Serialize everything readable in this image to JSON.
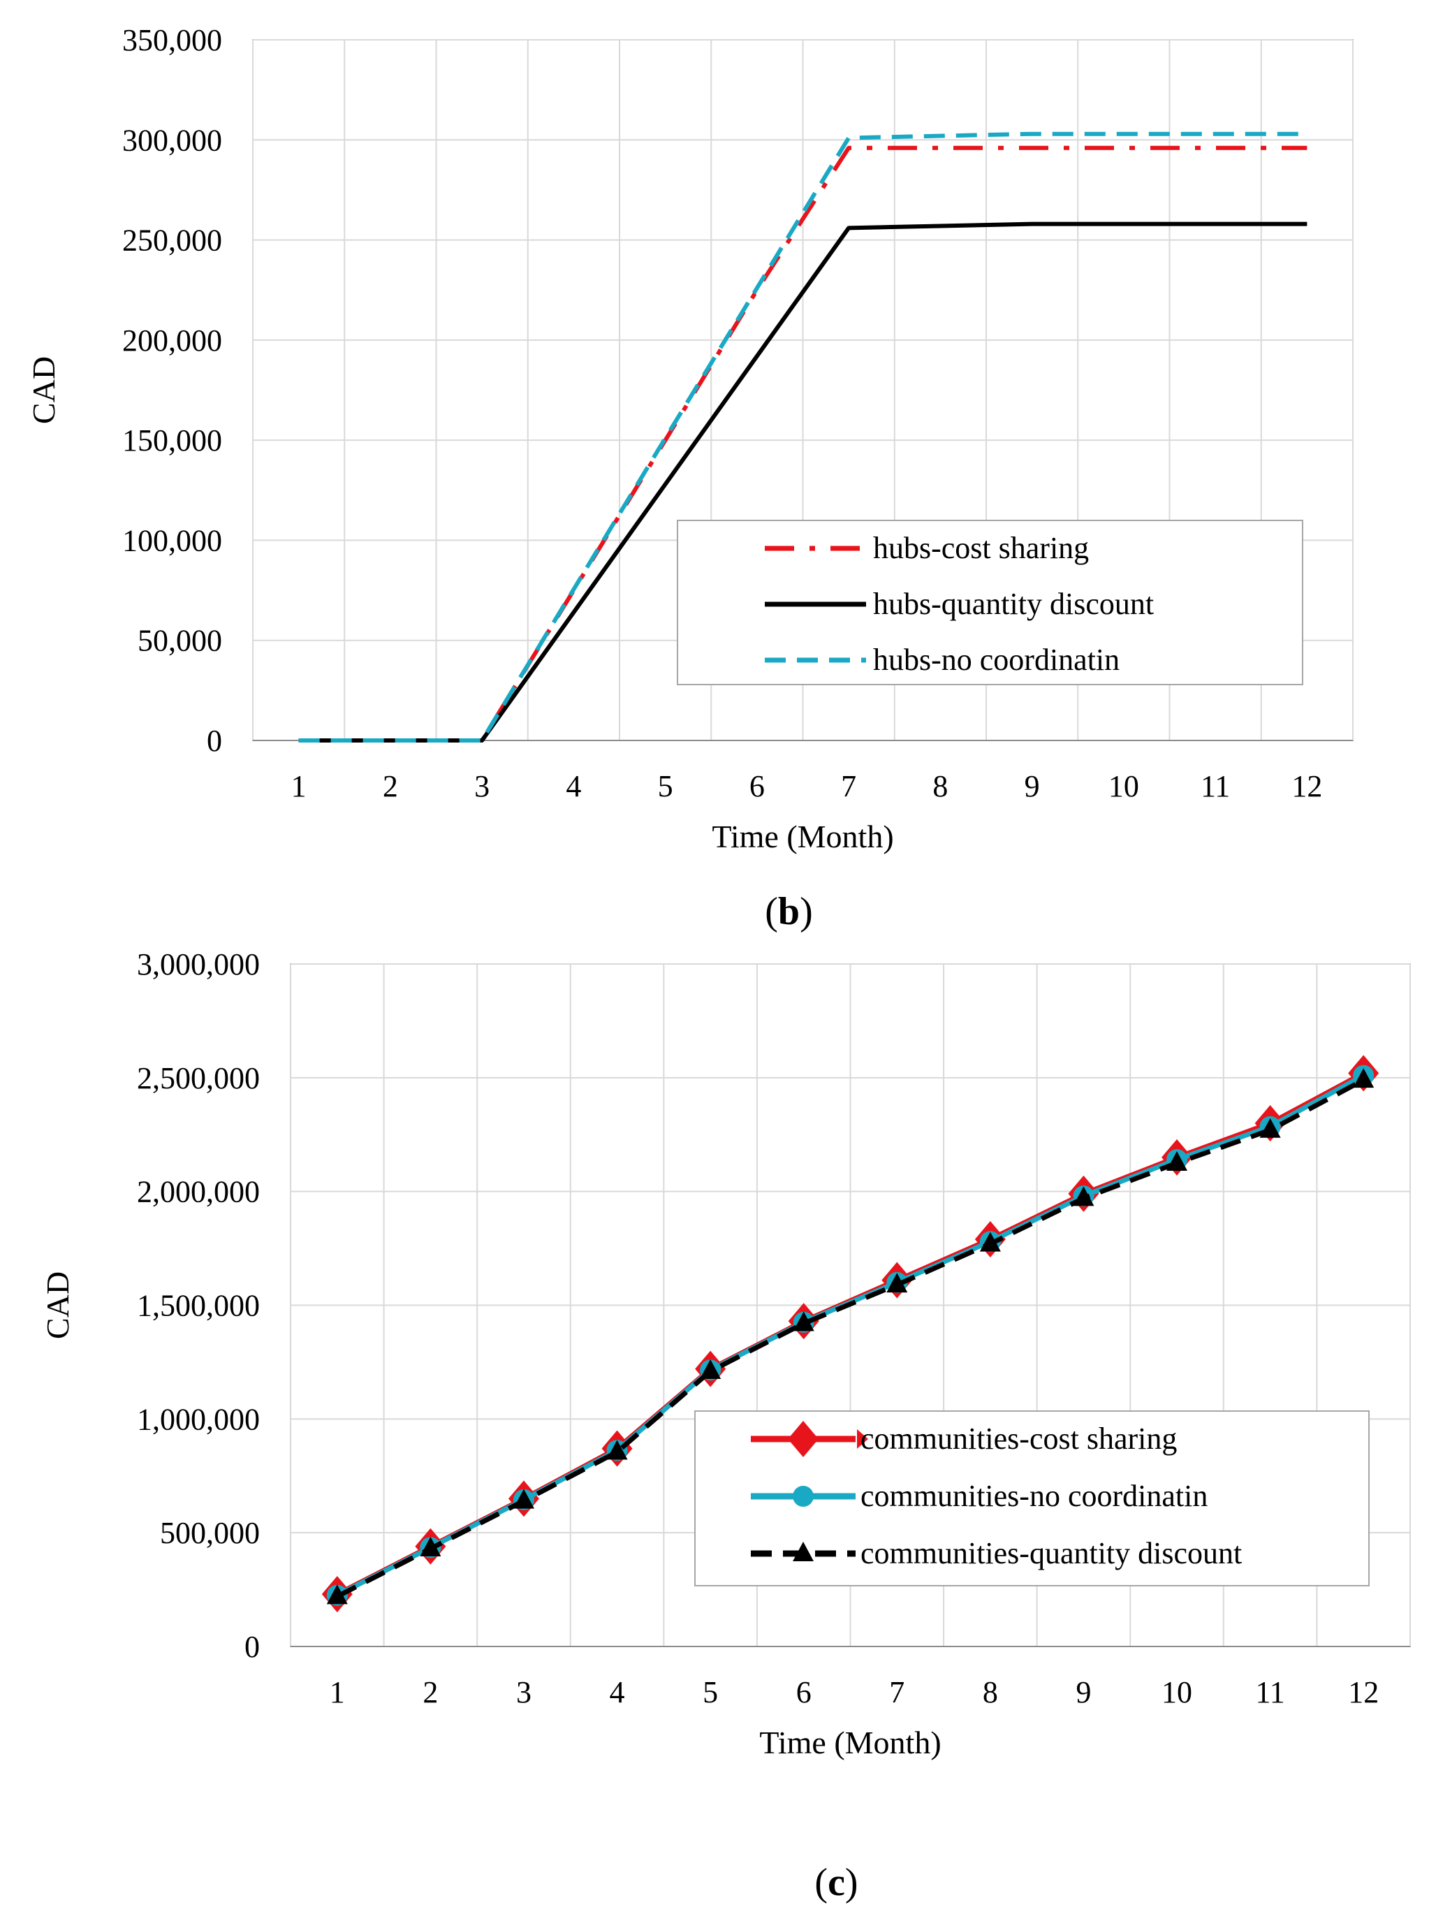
{
  "chart_data": [
    {
      "type": "line",
      "panel": "b",
      "caption_letter": "b",
      "xlabel": "Time (Month)",
      "ylabel": "CAD",
      "x": [
        1,
        2,
        3,
        4,
        5,
        6,
        7,
        8,
        9,
        10,
        11,
        12
      ],
      "ylim": [
        0,
        350000
      ],
      "yticks": [
        0,
        50000,
        100000,
        150000,
        200000,
        250000,
        300000,
        350000
      ],
      "ytick_labels": [
        "0",
        "50,000",
        "100,000",
        "150,000",
        "200,000",
        "250,000",
        "300,000",
        "350,000"
      ],
      "grid": true,
      "legend_position": "bottom-right",
      "series": [
        {
          "name": "hubs-cost sharing",
          "color": "#e8141b",
          "style": "dash-dot",
          "values": [
            0,
            0,
            0,
            75000,
            150000,
            225000,
            296000,
            296000,
            296000,
            296000,
            296000,
            296000
          ]
        },
        {
          "name": "hubs-quantity discount",
          "color": "#000000",
          "style": "solid",
          "values": [
            0,
            0,
            0,
            64000,
            128000,
            192000,
            256000,
            257000,
            258000,
            258000,
            258000,
            258000
          ]
        },
        {
          "name": "hubs-no coordinatin",
          "color": "#1aa9c4",
          "style": "dashed",
          "values": [
            0,
            0,
            0,
            75500,
            151000,
            226000,
            301000,
            302000,
            303000,
            303000,
            303000,
            303000
          ]
        }
      ]
    },
    {
      "type": "line",
      "panel": "c",
      "caption_letter": "c",
      "xlabel": "Time (Month)",
      "ylabel": "CAD",
      "x": [
        1,
        2,
        3,
        4,
        5,
        6,
        7,
        8,
        9,
        10,
        11,
        12
      ],
      "ylim": [
        0,
        3000000
      ],
      "yticks": [
        0,
        500000,
        1000000,
        1500000,
        2000000,
        2500000,
        3000000
      ],
      "ytick_labels": [
        "0",
        "500,000",
        "1,000,000",
        "1,500,000",
        "2,000,000",
        "2,500,000",
        "3,000,000"
      ],
      "grid": true,
      "legend_position": "bottom-right",
      "series": [
        {
          "name": "communities-cost sharing",
          "color": "#e8141b",
          "style": "solid",
          "marker": "diamond",
          "values": [
            230000,
            440000,
            650000,
            870000,
            1220000,
            1430000,
            1610000,
            1790000,
            1990000,
            2150000,
            2300000,
            2520000
          ]
        },
        {
          "name": "communities-no coordinatin",
          "color": "#1aa9c4",
          "style": "solid",
          "marker": "circle",
          "values": [
            225000,
            435000,
            645000,
            862000,
            1215000,
            1425000,
            1600000,
            1780000,
            1980000,
            2140000,
            2285000,
            2510000
          ]
        },
        {
          "name": "communities-quantity discount",
          "color": "#000000",
          "style": "dashed",
          "marker": "triangle",
          "values": [
            220000,
            430000,
            640000,
            855000,
            1210000,
            1420000,
            1590000,
            1770000,
            1970000,
            2125000,
            2270000,
            2490000
          ]
        }
      ]
    }
  ]
}
